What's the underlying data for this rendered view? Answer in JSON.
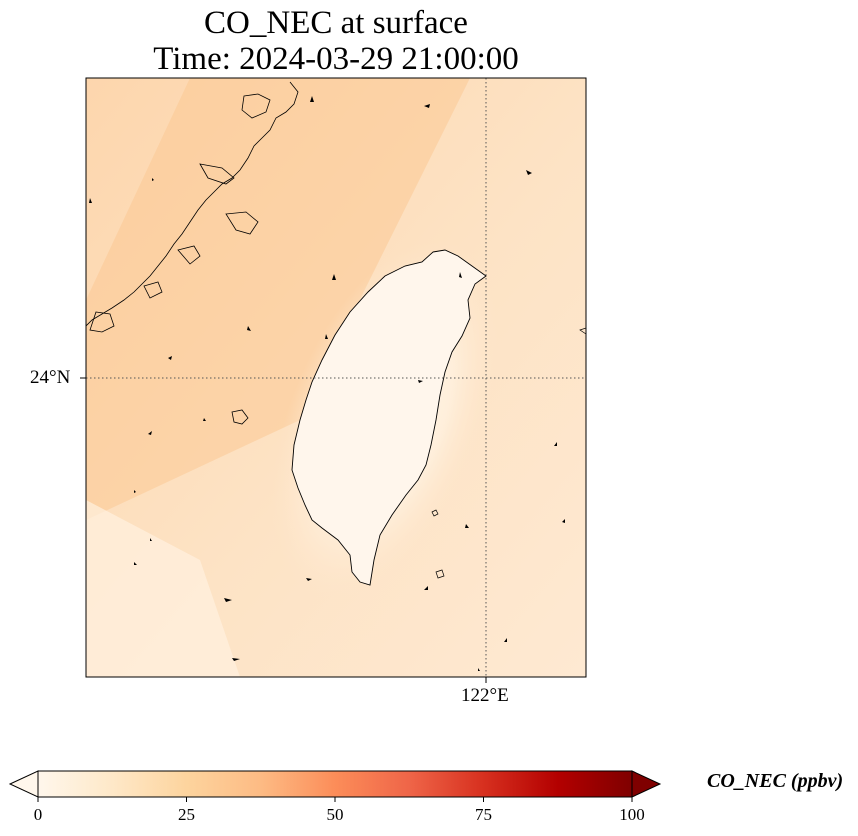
{
  "title_line1": "CO_NEC at surface",
  "title_line2": "Time: 2024-03-29 21:00:00",
  "axes": {
    "lat_label": "24°N",
    "lon_label": "122°E"
  },
  "colorbar": {
    "label": "CO_NEC (ppbv)",
    "ticks": [
      "0",
      "25",
      "50",
      "75",
      "100"
    ],
    "range": [
      0,
      100
    ],
    "colormap": "OrRd",
    "colors": [
      "#fff7ec",
      "#fee8c8",
      "#fdd49e",
      "#fdbb84",
      "#fc8d59",
      "#ef6548",
      "#d7301f",
      "#b30000",
      "#7f0000"
    ]
  },
  "map": {
    "background_color": "#fde0bc",
    "dark_band_color": "#fcc48e",
    "taiwan_interior_color": "#fff5ea",
    "gridline_style": "dotted",
    "coastline_color": "#000000"
  }
}
